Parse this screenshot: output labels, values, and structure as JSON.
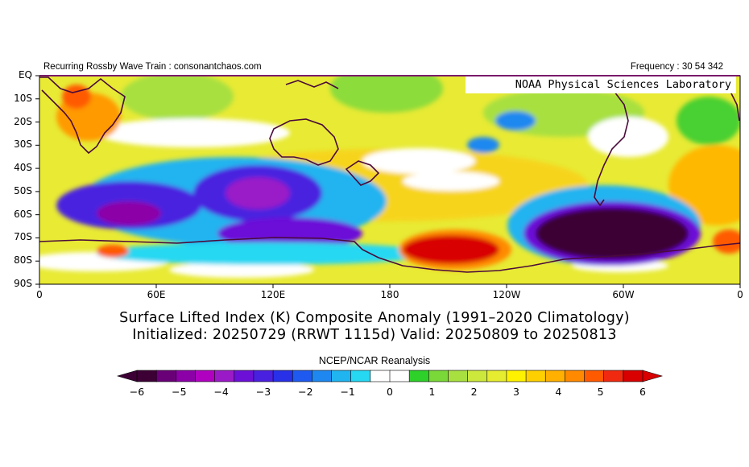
{
  "header": {
    "left": "Recurring Rossby Wave Train : consonantchaos.com",
    "right": "Frequency : 30 54 342"
  },
  "credit": "NOAA Physical Sciences Laboratory",
  "map": {
    "lat_labels": [
      "EQ",
      "10S",
      "20S",
      "30S",
      "40S",
      "50S",
      "60S",
      "70S",
      "80S",
      "90S"
    ],
    "lon_labels": [
      "0",
      "60E",
      "120E",
      "180",
      "120W",
      "60W",
      "0"
    ]
  },
  "title": {
    "line1": "Surface Lifted Index (K) Composite Anomaly (1991–2020 Climatology)",
    "line2": "Initialized: 20250729 (RRWT 1115d) Valid: 20250809 to 20250813"
  },
  "colorbar": {
    "label": "NCEP/NCAR Reanalysis",
    "ticks": [
      "−6",
      "−5",
      "−4",
      "−3",
      "−2",
      "−1",
      "0",
      "1",
      "2",
      "3",
      "4",
      "5",
      "6"
    ],
    "colors": [
      "#3d0035",
      "#6a0077",
      "#8c00a8",
      "#b000c0",
      "#9a1ac8",
      "#6c10d8",
      "#4a20e0",
      "#2830e8",
      "#1e5af0",
      "#1e88f0",
      "#20b4f0",
      "#26d8f2",
      "#ffffff",
      "#ffffff",
      "#2ed02a",
      "#7ad838",
      "#a8e040",
      "#cce83c",
      "#e6ec30",
      "#fff200",
      "#ffd000",
      "#ffb000",
      "#ff8a00",
      "#ff5a00",
      "#f02a10",
      "#d80000"
    ]
  }
}
